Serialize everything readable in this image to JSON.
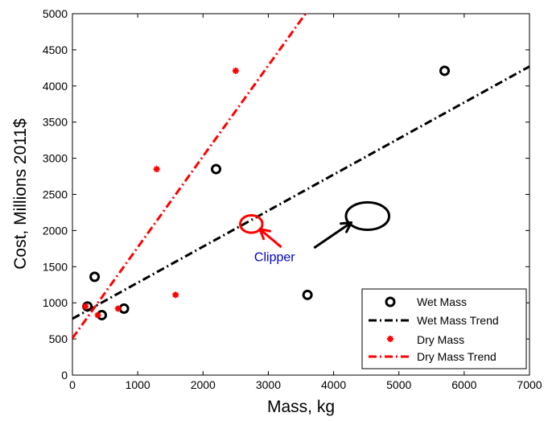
{
  "chart_data": {
    "type": "scatter",
    "title": "",
    "xlabel": "Mass, kg",
    "ylabel": "Cost, Millions 2011$",
    "xlim": [
      0,
      7000
    ],
    "ylim": [
      0,
      5000
    ],
    "xticks": [
      0,
      1000,
      2000,
      3000,
      4000,
      5000,
      6000,
      7000
    ],
    "yticks": [
      0,
      500,
      1000,
      1500,
      2000,
      2500,
      3000,
      3500,
      4000,
      4500,
      5000
    ],
    "grid": false,
    "legend_position": "bottom-right",
    "series": [
      {
        "name": "Wet Mass",
        "kind": "points",
        "marker": "open-circle",
        "color": "#000000",
        "points": [
          [
            230,
            950
          ],
          [
            340,
            1360
          ],
          [
            450,
            830
          ],
          [
            790,
            920
          ],
          [
            2200,
            2850
          ],
          [
            3600,
            1110
          ],
          [
            5700,
            4210
          ]
        ]
      },
      {
        "name": "Wet Mass Trend",
        "kind": "line",
        "style": "dash-dot",
        "color": "#000000",
        "points": [
          [
            0,
            780
          ],
          [
            7000,
            4270
          ]
        ]
      },
      {
        "name": "Dry Mass",
        "kind": "points",
        "marker": "asterisk",
        "color": "#ff0000",
        "points": [
          [
            200,
            950
          ],
          [
            390,
            830
          ],
          [
            700,
            920
          ],
          [
            1290,
            2850
          ],
          [
            1580,
            1110
          ],
          [
            2500,
            4210
          ]
        ]
      },
      {
        "name": "Dry Mass Trend",
        "kind": "line",
        "style": "dash-dot",
        "color": "#ff0000",
        "points": [
          [
            0,
            510
          ],
          [
            3570,
            5000
          ]
        ]
      }
    ],
    "annotations": {
      "label": "Clipper",
      "label_color": "#0000cc",
      "label_at": [
        2850,
        1600
      ],
      "red_ellipse": {
        "center": [
          2740,
          2090
        ],
        "rx": 170,
        "ry": 120,
        "color": "#ff0000"
      },
      "black_ellipse": {
        "center": [
          4520,
          2200
        ],
        "rx": 330,
        "ry": 190,
        "color": "#000000"
      },
      "red_arrow": {
        "from": [
          3200,
          1770
        ],
        "to": [
          2870,
          2020
        ]
      },
      "black_arrow": {
        "from": [
          3700,
          1760
        ],
        "to": [
          4270,
          2110
        ]
      }
    }
  }
}
